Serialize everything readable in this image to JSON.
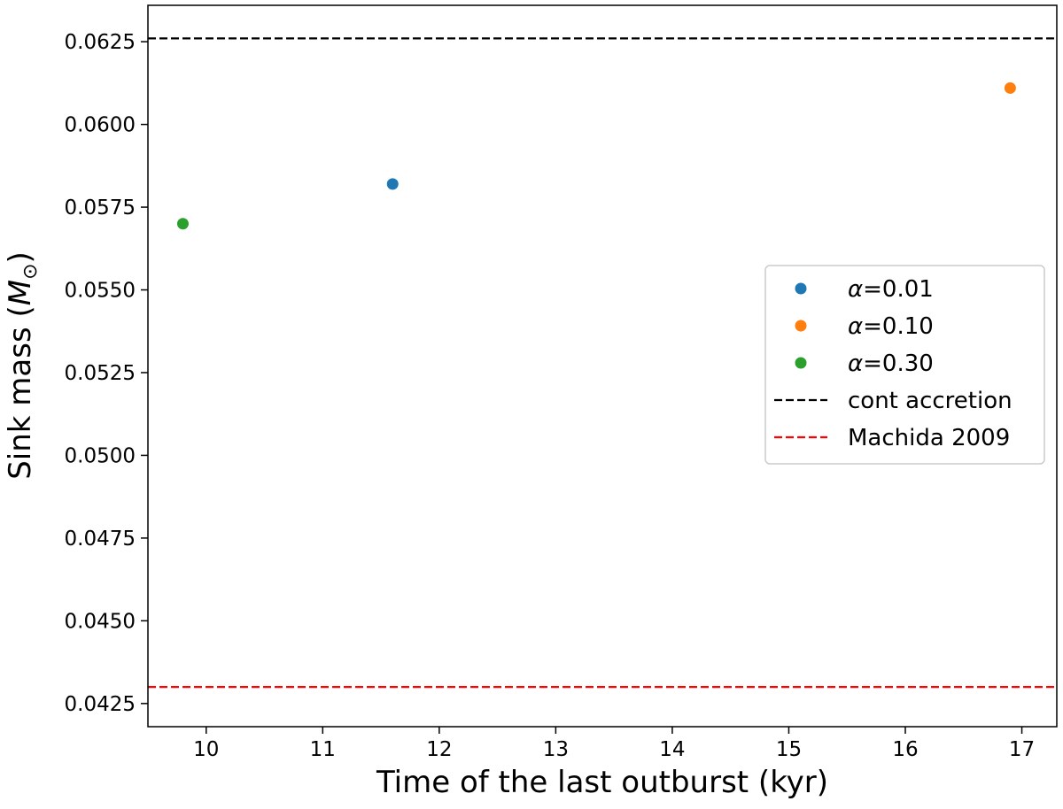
{
  "chart_data": {
    "type": "scatter",
    "title": "",
    "xlabel": "Time of the last outburst (kyr)",
    "ylabel": "Sink mass (M⊙)",
    "xlim": [
      9.5,
      17.3
    ],
    "ylim": [
      0.0418,
      0.0636
    ],
    "x_ticks": [
      10,
      11,
      12,
      13,
      14,
      15,
      16,
      17
    ],
    "y_ticks": [
      0.0425,
      0.045,
      0.0475,
      0.05,
      0.0525,
      0.055,
      0.0575,
      0.06,
      0.0625
    ],
    "x_tick_labels": [
      "10",
      "11",
      "12",
      "13",
      "14",
      "15",
      "16",
      "17"
    ],
    "y_tick_labels": [
      "0.0425",
      "0.0450",
      "0.0475",
      "0.0500",
      "0.0525",
      "0.0550",
      "0.0575",
      "0.0600",
      "0.0625"
    ],
    "grid": false,
    "legend_position": "center-right",
    "series": [
      {
        "name": "α=0.01",
        "color": "#1f77b4",
        "x": [
          11.6
        ],
        "y": [
          0.0582
        ]
      },
      {
        "name": "α=0.10",
        "color": "#ff7f0e",
        "x": [
          16.9
        ],
        "y": [
          0.0611
        ]
      },
      {
        "name": "α=0.30",
        "color": "#2ca02c",
        "x": [
          9.8
        ],
        "y": [
          0.057
        ]
      }
    ],
    "hlines": [
      {
        "name": "cont accretion",
        "color": "#000000",
        "y": 0.0626,
        "style": "dashed"
      },
      {
        "name": "Machida 2009",
        "color": "#ff0000",
        "y": 0.043,
        "style": "dashed"
      }
    ]
  }
}
